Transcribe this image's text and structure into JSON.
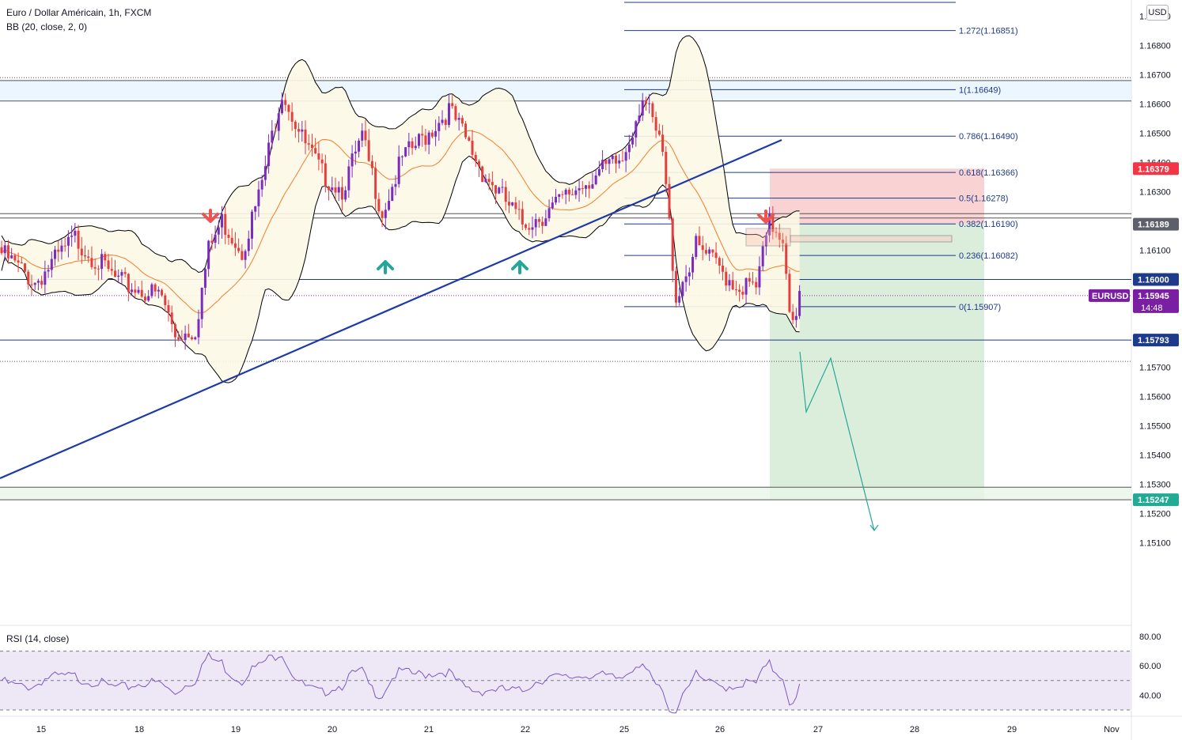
{
  "header": {
    "title": "Euro / Dollar Américain, 1h, FXCM",
    "indicator": "BB (20, close, 2, 0)",
    "currency_button": "USD"
  },
  "rsi_panel": {
    "label": "RSI (14, close)"
  },
  "colors": {
    "up_candle": "#7b2cbf",
    "down_candle": "#e53e3e",
    "band": "#000000",
    "basis": "#f57c2b",
    "band_fill": "#fdf8e6",
    "fib_line": "#1e3a8a",
    "trendline": "#1e3aa8",
    "short_stop_zone": "#f8c8c8",
    "short_target_zone": "#cfe8cf",
    "rsi_line": "#7e57c2",
    "rsi_band": "#ede7f6",
    "price_tag": "#7b1fa2",
    "arrow_down": "#ef5350",
    "arrow_up": "#26a69a"
  },
  "chart_data": {
    "type": "candlestick",
    "symbol": "EURUSD",
    "timeframe": "1h",
    "x_tick_labels": [
      "15",
      "18",
      "19",
      "20",
      "21",
      "22",
      "25",
      "26",
      "27",
      "28",
      "29",
      "Nov"
    ],
    "y_tick_labels": [
      "1.16900",
      "1.16800",
      "1.16700",
      "1.16600",
      "1.16500",
      "1.16400",
      "1.16300",
      "1.16200",
      "1.16100",
      "1.16000",
      "1.15900",
      "1.15800",
      "1.15700",
      "1.15600",
      "1.15500",
      "1.15400",
      "1.15300",
      "1.15200",
      "1.15100"
    ],
    "ylim": [
      1.1505,
      1.1694
    ],
    "fib_levels": [
      {
        "label": "1.272(1.16851)",
        "value": 1.16851
      },
      {
        "label": "1(1.16649)",
        "value": 1.16649
      },
      {
        "label": "0.786(1.16490)",
        "value": 1.1649
      },
      {
        "label": "0.618(1.16366)",
        "value": 1.16366
      },
      {
        "label": "0.5(1.16278)",
        "value": 1.16278
      },
      {
        "label": "0.382(1.16190)",
        "value": 1.1619
      },
      {
        "label": "0.236(1.16082)",
        "value": 1.16082
      },
      {
        "label": "0(1.15907)",
        "value": 1.15907
      }
    ],
    "price_tags": [
      {
        "text": "1.16379",
        "value": 1.16379,
        "style": "red"
      },
      {
        "text": "1.16189",
        "value": 1.16189,
        "style": "gray"
      },
      {
        "text": "1.16000",
        "value": 1.16,
        "style": "navy"
      },
      {
        "text": "1.15945",
        "value": 1.15945,
        "style": "purple",
        "sub": "14:48"
      },
      {
        "text": "1.15793",
        "value": 1.15793,
        "style": "navy"
      },
      {
        "text": "1.15247",
        "value": 1.15247,
        "style": "green"
      }
    ],
    "symbol_tag": "EURUSD",
    "last_price": 1.15945,
    "horizontal_lines": [
      1.1669,
      1.1668,
      1.1661,
      1.16225,
      1.1621,
      1.16,
      1.15945,
      1.15793,
      1.1572,
      1.1529,
      1.15247
    ],
    "position": {
      "entry": 1.16189,
      "stop": 1.16379,
      "target": 1.15247
    },
    "rsi": {
      "y_tick_labels": [
        "80.00",
        "60.00",
        "40.00"
      ],
      "ylim": [
        25,
        85
      ],
      "upper": 70,
      "middle": 50,
      "lower": 30
    }
  }
}
